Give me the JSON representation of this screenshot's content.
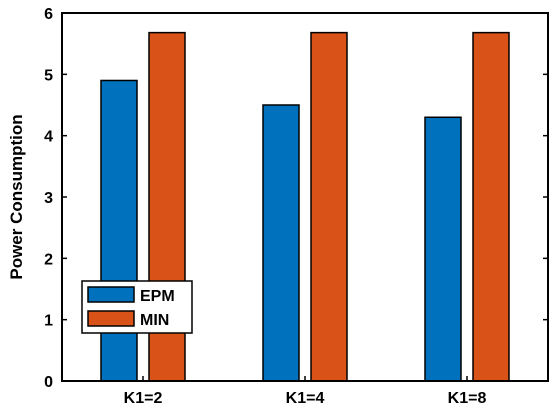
{
  "chart_data": {
    "type": "bar",
    "title": "",
    "xlabel": "",
    "ylabel": "Power Consumption",
    "categories": [
      "K1=2",
      "K1=4",
      "K1=8"
    ],
    "series": [
      {
        "name": "EPM",
        "color": "#0072BD",
        "values": [
          4.9,
          4.5,
          4.3
        ]
      },
      {
        "name": "MIN",
        "color": "#D95319",
        "values": [
          5.68,
          5.68,
          5.68
        ]
      }
    ],
    "ylim": [
      0,
      6
    ],
    "yticks": [
      0,
      1,
      2,
      3,
      4,
      5,
      6
    ],
    "grid": false,
    "legend": "bottom-left"
  }
}
